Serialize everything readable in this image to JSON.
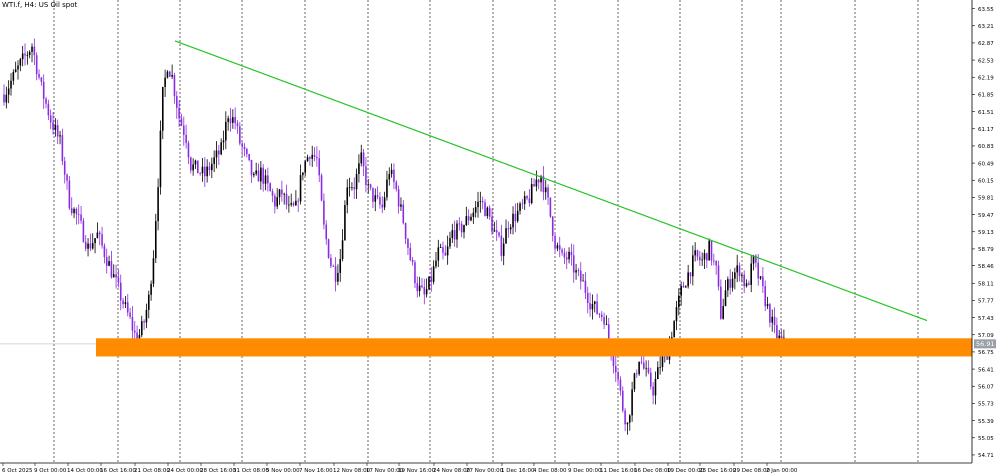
{
  "header": {
    "title": "WTI.f, H4:  US Oil spot"
  },
  "colors": {
    "background": "#ffffff",
    "bull_candle": "#000000",
    "bear_candle": "#8a2be2",
    "trendline": "#22c422",
    "support_zone": "#ff8c00",
    "grid": "#000000",
    "price_tag": "#9aa0a6"
  },
  "chart_data": {
    "type": "candlestick",
    "title": "WTI.f, H4:  US Oil spot",
    "y_axis": {
      "position": "right",
      "range": [
        54.55,
        63.72
      ],
      "ticks": [
        63.55,
        63.21,
        62.87,
        62.53,
        62.19,
        61.85,
        61.51,
        61.17,
        60.83,
        60.49,
        60.15,
        59.81,
        59.47,
        59.13,
        58.79,
        58.46,
        58.11,
        57.77,
        57.43,
        57.09,
        56.75,
        56.41,
        56.07,
        55.73,
        55.39,
        55.05,
        54.71
      ]
    },
    "x_axis": {
      "ticks": [
        "6 Oct 2025",
        "9 Oct 00:00",
        "14 Oct 00:00",
        "16 Oct 16:00",
        "21 Oct 08:00",
        "24 Oct 00:00",
        "28 Oct 16:00",
        "31 Oct 08:00",
        "5 Nov 00:00",
        "7 Nov 16:00",
        "12 Nov 08:00",
        "17 Nov 00:00",
        "19 Nov 16:00",
        "24 Nov 08:00",
        "27 Nov 00:00",
        "1 Dec 16:00",
        "4 Dec 08:00",
        "9 Dec 00:00",
        "11 Dec 16:00",
        "16 Dec 08:00",
        "19 Dec 00:00",
        "23 Dec 16:00",
        "29 Dec 08:00",
        "2 Jan 00:00"
      ]
    },
    "grid": "vertical dotted",
    "current_price": 56.91,
    "support_zone": {
      "low": 56.66,
      "high": 57.02,
      "start": "16 Oct 2025"
    },
    "trendline": {
      "from": {
        "time": "24 Oct 00:00",
        "price": 62.91
      },
      "to": {
        "time": "after 2 Jan 00:00",
        "price": 57.37
      }
    },
    "price_path": [
      {
        "t": 0,
        "p": 61.85
      },
      {
        "t": 7,
        "p": 62.45
      },
      {
        "t": 12,
        "p": 62.82
      },
      {
        "t": 16,
        "p": 61.97
      },
      {
        "t": 20,
        "p": 61.35
      },
      {
        "t": 24,
        "p": 60.9
      },
      {
        "t": 28,
        "p": 59.73
      },
      {
        "t": 32,
        "p": 59.35
      },
      {
        "t": 36,
        "p": 58.82
      },
      {
        "t": 40,
        "p": 59.07
      },
      {
        "t": 45,
        "p": 58.48
      },
      {
        "t": 50,
        "p": 57.85
      },
      {
        "t": 54,
        "p": 57.37
      },
      {
        "t": 57,
        "p": 56.95
      },
      {
        "t": 60,
        "p": 57.35
      },
      {
        "t": 62,
        "p": 57.8
      },
      {
        "t": 64,
        "p": 58.7
      },
      {
        "t": 66,
        "p": 60.15
      },
      {
        "t": 68,
        "p": 61.85
      },
      {
        "t": 70,
        "p": 62.45
      },
      {
        "t": 72,
        "p": 62.2
      },
      {
        "t": 75,
        "p": 61.4
      },
      {
        "t": 78,
        "p": 61.0
      },
      {
        "t": 80,
        "p": 60.45
      },
      {
        "t": 83,
        "p": 60.35
      },
      {
        "t": 86,
        "p": 60.25
      },
      {
        "t": 90,
        "p": 60.55
      },
      {
        "t": 93,
        "p": 60.75
      },
      {
        "t": 96,
        "p": 61.47
      },
      {
        "t": 99,
        "p": 61.3
      },
      {
        "t": 101,
        "p": 60.9
      },
      {
        "t": 104,
        "p": 60.55
      },
      {
        "t": 107,
        "p": 60.15
      },
      {
        "t": 110,
        "p": 60.3
      },
      {
        "t": 113,
        "p": 60.0
      },
      {
        "t": 116,
        "p": 59.71
      },
      {
        "t": 119,
        "p": 59.9
      },
      {
        "t": 122,
        "p": 59.55
      },
      {
        "t": 125,
        "p": 59.6
      },
      {
        "t": 128,
        "p": 60.4
      },
      {
        "t": 131,
        "p": 60.72
      },
      {
        "t": 134,
        "p": 60.55
      },
      {
        "t": 137,
        "p": 59.2
      },
      {
        "t": 140,
        "p": 58.5
      },
      {
        "t": 142,
        "p": 58.3
      },
      {
        "t": 144,
        "p": 58.62
      },
      {
        "t": 147,
        "p": 60.11
      },
      {
        "t": 150,
        "p": 60.05
      },
      {
        "t": 153,
        "p": 60.55
      },
      {
        "t": 156,
        "p": 59.97
      },
      {
        "t": 159,
        "p": 59.75
      },
      {
        "t": 162,
        "p": 59.6
      },
      {
        "t": 165,
        "p": 60.35
      },
      {
        "t": 168,
        "p": 59.95
      },
      {
        "t": 171,
        "p": 59.35
      },
      {
        "t": 174,
        "p": 58.6
      },
      {
        "t": 177,
        "p": 58.05
      },
      {
        "t": 180,
        "p": 57.85
      },
      {
        "t": 183,
        "p": 58.2
      },
      {
        "t": 186,
        "p": 58.72
      },
      {
        "t": 189,
        "p": 58.6
      },
      {
        "t": 192,
        "p": 59.12
      },
      {
        "t": 195,
        "p": 59.15
      },
      {
        "t": 198,
        "p": 59.35
      },
      {
        "t": 201,
        "p": 59.55
      },
      {
        "t": 204,
        "p": 59.75
      },
      {
        "t": 207,
        "p": 59.5
      },
      {
        "t": 210,
        "p": 59.12
      },
      {
        "t": 213,
        "p": 58.8
      },
      {
        "t": 216,
        "p": 59.3
      },
      {
        "t": 219,
        "p": 59.45
      },
      {
        "t": 222,
        "p": 59.62
      },
      {
        "t": 225,
        "p": 59.8
      },
      {
        "t": 228,
        "p": 60.15
      },
      {
        "t": 230,
        "p": 60.25
      },
      {
        "t": 233,
        "p": 59.7
      },
      {
        "t": 236,
        "p": 58.92
      },
      {
        "t": 239,
        "p": 58.6
      },
      {
        "t": 242,
        "p": 58.62
      },
      {
        "t": 245,
        "p": 58.3
      },
      {
        "t": 248,
        "p": 58.1
      },
      {
        "t": 251,
        "p": 57.75
      },
      {
        "t": 254,
        "p": 57.55
      },
      {
        "t": 257,
        "p": 57.45
      },
      {
        "t": 259,
        "p": 56.95
      },
      {
        "t": 262,
        "p": 56.45
      },
      {
        "t": 265,
        "p": 55.65
      },
      {
        "t": 267,
        "p": 55.3
      },
      {
        "t": 269,
        "p": 55.95
      },
      {
        "t": 272,
        "p": 56.65
      },
      {
        "t": 275,
        "p": 56.3
      },
      {
        "t": 278,
        "p": 56.0
      },
      {
        "t": 281,
        "p": 56.5
      },
      {
        "t": 284,
        "p": 56.75
      },
      {
        "t": 287,
        "p": 57.35
      },
      {
        "t": 290,
        "p": 57.95
      },
      {
        "t": 293,
        "p": 58.3
      },
      {
        "t": 296,
        "p": 58.62
      },
      {
        "t": 299,
        "p": 58.55
      },
      {
        "t": 302,
        "p": 58.8
      },
      {
        "t": 305,
        "p": 58.35
      },
      {
        "t": 307,
        "p": 57.5
      },
      {
        "t": 309,
        "p": 57.95
      },
      {
        "t": 312,
        "p": 58.28
      },
      {
        "t": 315,
        "p": 58.4
      },
      {
        "t": 318,
        "p": 58.0
      },
      {
        "t": 321,
        "p": 58.55
      },
      {
        "t": 324,
        "p": 58.1
      },
      {
        "t": 327,
        "p": 57.62
      },
      {
        "t": 330,
        "p": 57.15
      },
      {
        "t": 332,
        "p": 57.0
      },
      {
        "t": 334,
        "p": 56.91
      }
    ]
  }
}
